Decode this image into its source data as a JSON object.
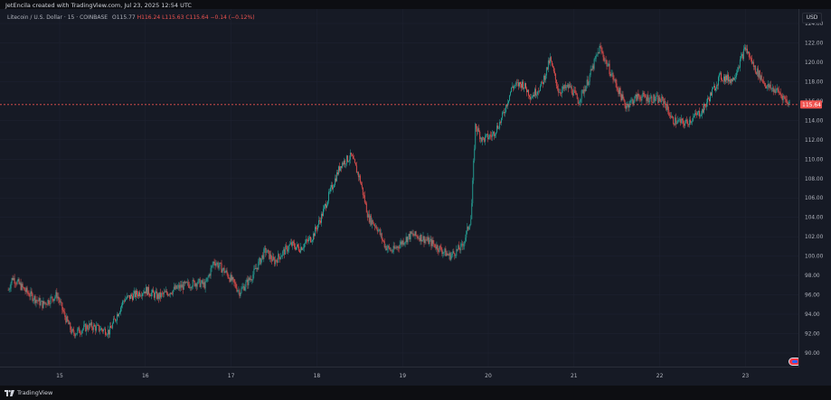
{
  "caption": "JetEncila created with TradingView.com, Jul 23, 2025 12:54 UTC",
  "legend": {
    "symbol": "Litecoin / U.S. Dollar · 15 · COINBASE",
    "open": "O115.77",
    "high": "H116.24",
    "low": "L115.63",
    "close": "C115.64",
    "change": "−0.14 (−0.12%)"
  },
  "currency": "USD",
  "last_price_label": "115.64",
  "branding": "TradingView",
  "colors": {
    "up": "#26a69a",
    "down": "#ef5350",
    "background": "#161a25",
    "grid": "#1e2230",
    "text": "#d1d4dc",
    "last_price_line": "#ef5350"
  },
  "icons": [
    "tradingview-logo-icon",
    "alert-icon"
  ],
  "chart_data": {
    "type": "candlestick",
    "title": "Litecoin / U.S. Dollar · 15 · COINBASE",
    "interval": "15",
    "grid": true,
    "ylim": [
      88.5,
      125.5
    ],
    "y_ticks": [
      "90.00",
      "92.00",
      "94.00",
      "96.00",
      "98.00",
      "100.00",
      "102.00",
      "104.00",
      "106.00",
      "108.00",
      "110.00",
      "112.00",
      "114.00",
      "116.00",
      "118.00",
      "120.00",
      "122.00",
      "124.00"
    ],
    "x_ticks": [
      "15",
      "16",
      "17",
      "18",
      "19",
      "20",
      "21",
      "22",
      "23"
    ],
    "last_price": 115.64,
    "path": [
      [
        14.4,
        96.5
      ],
      [
        14.45,
        97.8
      ],
      [
        14.6,
        96.4
      ],
      [
        14.8,
        95.0
      ],
      [
        14.97,
        96.0
      ],
      [
        15.05,
        94.0
      ],
      [
        15.15,
        92.0
      ],
      [
        15.35,
        92.8
      ],
      [
        15.58,
        92.2
      ],
      [
        15.75,
        95.5
      ],
      [
        16.0,
        96.5
      ],
      [
        16.15,
        95.8
      ],
      [
        16.4,
        96.8
      ],
      [
        16.6,
        97.3
      ],
      [
        16.7,
        97.0
      ],
      [
        16.8,
        99.5
      ],
      [
        16.95,
        98.2
      ],
      [
        17.1,
        96.3
      ],
      [
        17.25,
        98.0
      ],
      [
        17.4,
        100.6
      ],
      [
        17.5,
        99.4
      ],
      [
        17.7,
        101.2
      ],
      [
        17.8,
        100.8
      ],
      [
        17.95,
        102.0
      ],
      [
        18.05,
        104.0
      ],
      [
        18.15,
        106.5
      ],
      [
        18.28,
        109.5
      ],
      [
        18.4,
        110.3
      ],
      [
        18.5,
        108.0
      ],
      [
        18.6,
        104.0
      ],
      [
        18.7,
        103.0
      ],
      [
        18.8,
        101.0
      ],
      [
        18.88,
        100.5
      ],
      [
        19.0,
        101.5
      ],
      [
        19.1,
        102.2
      ],
      [
        19.2,
        102.0
      ],
      [
        19.35,
        101.3
      ],
      [
        19.55,
        100.0
      ],
      [
        19.7,
        101.0
      ],
      [
        19.8,
        104.0
      ],
      [
        19.85,
        113.5
      ],
      [
        19.93,
        112.0
      ],
      [
        20.05,
        112.5
      ],
      [
        20.15,
        114.0
      ],
      [
        20.28,
        117.5
      ],
      [
        20.4,
        117.8
      ],
      [
        20.5,
        116.5
      ],
      [
        20.62,
        117.6
      ],
      [
        20.72,
        120.3
      ],
      [
        20.82,
        117.0
      ],
      [
        20.95,
        117.5
      ],
      [
        21.05,
        116.0
      ],
      [
        21.15,
        117.8
      ],
      [
        21.3,
        121.5
      ],
      [
        21.45,
        118.5
      ],
      [
        21.6,
        115.5
      ],
      [
        21.75,
        116.5
      ],
      [
        21.95,
        116.2
      ],
      [
        22.05,
        116.0
      ],
      [
        22.15,
        114.0
      ],
      [
        22.3,
        113.7
      ],
      [
        22.5,
        115.0
      ],
      [
        22.7,
        118.5
      ],
      [
        22.85,
        118.2
      ],
      [
        23.0,
        121.5
      ],
      [
        23.1,
        119.5
      ],
      [
        23.25,
        117.5
      ],
      [
        23.38,
        117.0
      ],
      [
        23.52,
        115.64
      ]
    ]
  }
}
